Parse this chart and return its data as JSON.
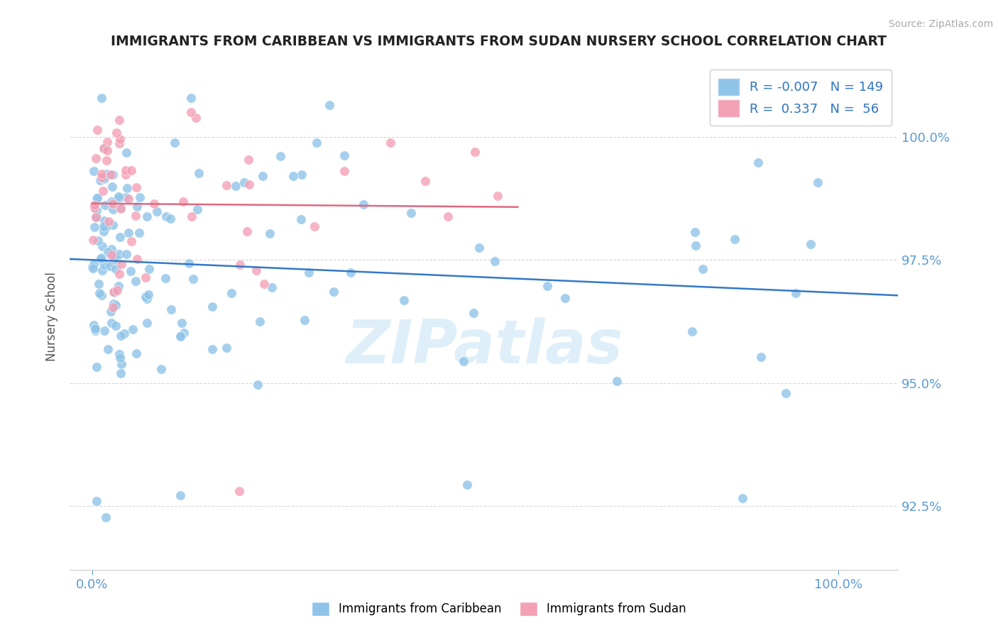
{
  "title": "IMMIGRANTS FROM CARIBBEAN VS IMMIGRANTS FROM SUDAN NURSERY SCHOOL CORRELATION CHART",
  "source": "Source: ZipAtlas.com",
  "ylabel": "Nursery School",
  "color_blue": "#8fc4e8",
  "color_pink": "#f4a0b5",
  "color_blue_line": "#3478c8",
  "color_pink_line": "#e06880",
  "color_axis_text": "#5b9bd5",
  "color_title": "#222222",
  "color_grid": "#cccccc",
  "watermark": "ZIPatlas",
  "ylim": [
    91.2,
    101.5
  ],
  "xlim": [
    -0.003,
    0.108
  ],
  "yticks": [
    92.5,
    95.0,
    97.5,
    100.0
  ],
  "xticks": [
    0.0,
    0.1
  ],
  "r_blue": "-0.007",
  "n_blue": "149",
  "r_pink": "0.337",
  "n_pink": "56",
  "legend_blue_label": "R = -0.007   N = 149",
  "legend_pink_label": "R =  0.337   N =  56",
  "bottom_label_blue": "Immigrants from Caribbean",
  "bottom_label_pink": "Immigrants from Sudan"
}
